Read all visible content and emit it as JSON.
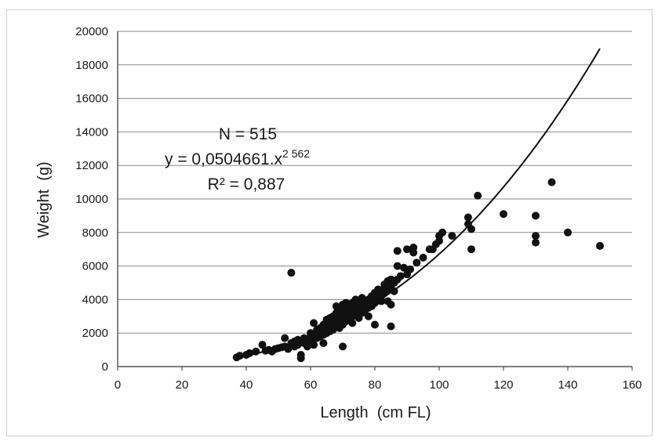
{
  "chart_data": {
    "type": "scatter",
    "xlabel": "Length  (cm FL)",
    "ylabel": "Weight  (g)",
    "xlim": [
      0,
      160
    ],
    "ylim": [
      0,
      20000
    ],
    "x_ticks": [
      "0",
      "20",
      "40",
      "60",
      "80",
      "100",
      "120",
      "140",
      "160"
    ],
    "y_ticks": [
      "0",
      "2000",
      "4000",
      "6000",
      "8000",
      "10000",
      "12000",
      "14000",
      "16000",
      "18000",
      "20000"
    ],
    "grid": "horizontal",
    "annotations": {
      "n": "N = 515",
      "equation_base": "y = 0,0504661.x",
      "equation_exponent": "2 562",
      "r2": "R² = 0,887"
    },
    "fit": {
      "type": "power",
      "a": 0.0504661,
      "b": 2.562,
      "x_range": [
        37,
        150
      ]
    },
    "series": [
      {
        "points": [
          [
            37,
            550
          ],
          [
            38,
            650
          ],
          [
            40,
            700
          ],
          [
            41,
            800
          ],
          [
            43,
            900
          ],
          [
            45,
            1300
          ],
          [
            46,
            950
          ],
          [
            47,
            1000
          ],
          [
            48,
            900
          ],
          [
            49,
            1050
          ],
          [
            50,
            1100
          ],
          [
            51,
            1150
          ],
          [
            52,
            1700
          ],
          [
            52,
            1200
          ],
          [
            53,
            1050
          ],
          [
            54,
            1400
          ],
          [
            54,
            5600
          ],
          [
            55,
            1200
          ],
          [
            55,
            1500
          ],
          [
            56,
            1300
          ],
          [
            56,
            1600
          ],
          [
            57,
            1500
          ],
          [
            57,
            700
          ],
          [
            57,
            500
          ],
          [
            58,
            1400
          ],
          [
            58,
            1700
          ],
          [
            59,
            1600
          ],
          [
            59,
            1200
          ],
          [
            60,
            1800
          ],
          [
            60,
            1500
          ],
          [
            60,
            2000
          ],
          [
            61,
            1800
          ],
          [
            61,
            1300
          ],
          [
            61,
            2600
          ],
          [
            62,
            2200
          ],
          [
            62,
            1700
          ],
          [
            62,
            2000
          ],
          [
            63,
            2300
          ],
          [
            63,
            1800
          ],
          [
            63,
            2100
          ],
          [
            64,
            2200
          ],
          [
            64,
            2500
          ],
          [
            64,
            1900
          ],
          [
            64,
            1400
          ],
          [
            65,
            2600
          ],
          [
            65,
            2300
          ],
          [
            65,
            2800
          ],
          [
            65,
            2000
          ],
          [
            66,
            2400
          ],
          [
            66,
            2700
          ],
          [
            66,
            2900
          ],
          [
            66,
            2100
          ],
          [
            67,
            2600
          ],
          [
            67,
            3000
          ],
          [
            67,
            2200
          ],
          [
            67,
            2800
          ],
          [
            68,
            3200
          ],
          [
            68,
            2700
          ],
          [
            68,
            2400
          ],
          [
            68,
            3600
          ],
          [
            69,
            3000
          ],
          [
            69,
            2600
          ],
          [
            69,
            2300
          ],
          [
            69,
            3400
          ],
          [
            70,
            3200
          ],
          [
            70,
            2800
          ],
          [
            70,
            3700
          ],
          [
            70,
            2500
          ],
          [
            70,
            1200
          ],
          [
            71,
            3000
          ],
          [
            71,
            3400
          ],
          [
            71,
            2700
          ],
          [
            71,
            3800
          ],
          [
            72,
            3300
          ],
          [
            72,
            3600
          ],
          [
            72,
            2900
          ],
          [
            72,
            3100
          ],
          [
            73,
            3500
          ],
          [
            73,
            3800
          ],
          [
            73,
            3000
          ],
          [
            73,
            2600
          ],
          [
            74,
            3700
          ],
          [
            74,
            3400
          ],
          [
            74,
            3200
          ],
          [
            74,
            4000
          ],
          [
            75,
            3600
          ],
          [
            75,
            3900
          ],
          [
            75,
            3300
          ],
          [
            75,
            2900
          ],
          [
            76,
            3800
          ],
          [
            76,
            3500
          ],
          [
            76,
            4100
          ],
          [
            76,
            3200
          ],
          [
            77,
            3900
          ],
          [
            77,
            3700
          ],
          [
            77,
            3400
          ],
          [
            78,
            4000
          ],
          [
            78,
            3700
          ],
          [
            78,
            3500
          ],
          [
            78,
            3000
          ],
          [
            79,
            4200
          ],
          [
            79,
            3900
          ],
          [
            79,
            3600
          ],
          [
            80,
            4100
          ],
          [
            80,
            4400
          ],
          [
            80,
            3800
          ],
          [
            80,
            2500
          ],
          [
            81,
            4300
          ],
          [
            81,
            4000
          ],
          [
            81,
            4600
          ],
          [
            82,
            4500
          ],
          [
            82,
            4200
          ],
          [
            82,
            3900
          ],
          [
            83,
            4700
          ],
          [
            83,
            4400
          ],
          [
            83,
            4900
          ],
          [
            84,
            4600
          ],
          [
            84,
            5100
          ],
          [
            84,
            3900
          ],
          [
            85,
            4800
          ],
          [
            85,
            5200
          ],
          [
            85,
            3700
          ],
          [
            85,
            2400
          ],
          [
            86,
            5000
          ],
          [
            86,
            4500
          ],
          [
            87,
            5200
          ],
          [
            87,
            6900
          ],
          [
            87,
            6000
          ],
          [
            88,
            5400
          ],
          [
            89,
            5900
          ],
          [
            90,
            5500
          ],
          [
            90,
            7000
          ],
          [
            91,
            5800
          ],
          [
            92,
            6800
          ],
          [
            92,
            7100
          ],
          [
            93,
            6200
          ],
          [
            95,
            6500
          ],
          [
            97,
            7000
          ],
          [
            98,
            7000
          ],
          [
            99,
            7300
          ],
          [
            100,
            7500
          ],
          [
            100,
            7800
          ],
          [
            101,
            8000
          ],
          [
            104,
            7800
          ],
          [
            109,
            8900
          ],
          [
            109,
            8500
          ],
          [
            110,
            8200
          ],
          [
            110,
            7000
          ],
          [
            112,
            10200
          ],
          [
            120,
            9100
          ],
          [
            130,
            9000
          ],
          [
            130,
            7800
          ],
          [
            130,
            7400
          ],
          [
            135,
            11000
          ],
          [
            140,
            8000
          ],
          [
            150,
            7200
          ]
        ]
      }
    ]
  }
}
